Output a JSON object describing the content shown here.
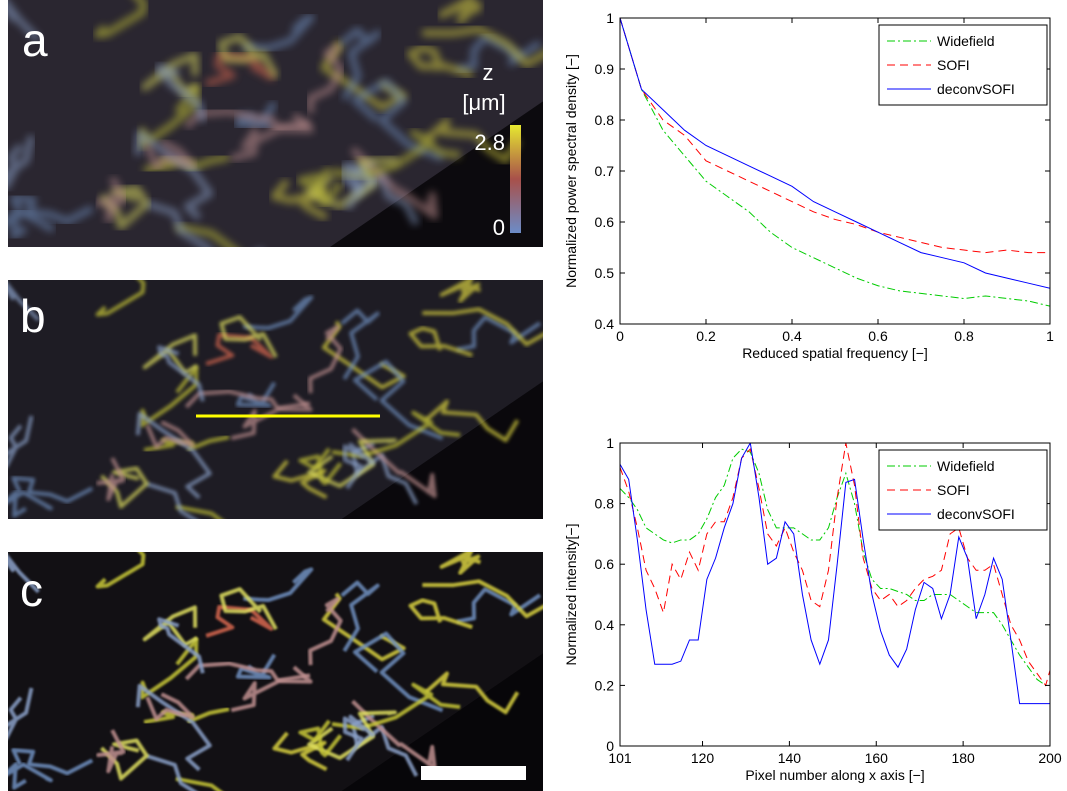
{
  "image_panels": {
    "labels": [
      "a",
      "b",
      "c"
    ]
  },
  "colorbar": {
    "title": "z",
    "unit": "[μm]",
    "ticks": [
      0,
      2.8
    ]
  },
  "chart_data": [
    {
      "type": "line",
      "xlabel": "Reduced spatial frequency [−]",
      "ylabel": "Normalized power spectral density [−]",
      "x": [
        0,
        0.05,
        0.1,
        0.15,
        0.2,
        0.25,
        0.3,
        0.35,
        0.4,
        0.45,
        0.5,
        0.55,
        0.6,
        0.65,
        0.7,
        0.75,
        0.8,
        0.85,
        0.9,
        0.95,
        1
      ],
      "xlim": [
        0,
        1
      ],
      "ylim": [
        0.4,
        1
      ],
      "xticks": [
        0,
        0.2,
        0.4,
        0.6,
        0.8,
        1
      ],
      "yticks": [
        0.4,
        0.5,
        0.6,
        0.7,
        0.8,
        0.9,
        1
      ],
      "legend": "upper right",
      "series": [
        {
          "name": "Widefield",
          "color": "#00cc00",
          "linestyle": "dashdot",
          "values": [
            1,
            0.86,
            0.78,
            0.73,
            0.68,
            0.65,
            0.62,
            0.58,
            0.55,
            0.53,
            0.51,
            0.49,
            0.475,
            0.465,
            0.46,
            0.455,
            0.45,
            0.455,
            0.45,
            0.445,
            0.435
          ]
        },
        {
          "name": "SOFI",
          "color": "#ff0000",
          "linestyle": "dashed",
          "values": [
            1,
            0.86,
            0.8,
            0.77,
            0.72,
            0.7,
            0.68,
            0.66,
            0.64,
            0.62,
            0.605,
            0.595,
            0.58,
            0.57,
            0.56,
            0.55,
            0.545,
            0.54,
            0.545,
            0.54,
            0.54
          ]
        },
        {
          "name": "deconvSOFI",
          "color": "#0000ff",
          "linestyle": "solid",
          "values": [
            1,
            0.86,
            0.82,
            0.78,
            0.75,
            0.73,
            0.71,
            0.69,
            0.67,
            0.64,
            0.62,
            0.6,
            0.58,
            0.56,
            0.54,
            0.53,
            0.52,
            0.5,
            0.49,
            0.48,
            0.47
          ]
        }
      ]
    },
    {
      "type": "line",
      "xlabel": "Pixel number along x axis [−]",
      "ylabel": "Normalized intensity[−]",
      "x": [
        101,
        103,
        105,
        107,
        109,
        111,
        113,
        115,
        117,
        119,
        121,
        123,
        125,
        127,
        129,
        131,
        133,
        135,
        137,
        139,
        141,
        143,
        145,
        147,
        149,
        151,
        153,
        155,
        157,
        159,
        161,
        163,
        165,
        167,
        169,
        171,
        173,
        175,
        177,
        179,
        181,
        183,
        185,
        187,
        189,
        191,
        193,
        195,
        197,
        199,
        200
      ],
      "xlim": [
        101,
        200
      ],
      "ylim": [
        0,
        1
      ],
      "xticks": [
        101,
        120,
        140,
        160,
        180,
        200
      ],
      "yticks": [
        0,
        0.2,
        0.4,
        0.6,
        0.8,
        1
      ],
      "legend": "upper right",
      "series": [
        {
          "name": "Widefield",
          "color": "#00cc00",
          "linestyle": "dashdot",
          "values": [
            0.85,
            0.82,
            0.78,
            0.72,
            0.7,
            0.68,
            0.67,
            0.68,
            0.68,
            0.7,
            0.75,
            0.82,
            0.86,
            0.95,
            0.98,
            0.97,
            0.9,
            0.78,
            0.72,
            0.72,
            0.72,
            0.7,
            0.68,
            0.68,
            0.72,
            0.82,
            0.9,
            0.8,
            0.64,
            0.55,
            0.52,
            0.52,
            0.51,
            0.5,
            0.48,
            0.48,
            0.5,
            0.5,
            0.5,
            0.48,
            0.46,
            0.44,
            0.44,
            0.44,
            0.4,
            0.35,
            0.3,
            0.26,
            0.22,
            0.2,
            0.2
          ]
        },
        {
          "name": "SOFI",
          "color": "#ff0000",
          "linestyle": "dashed",
          "values": [
            0.92,
            0.84,
            0.72,
            0.58,
            0.52,
            0.44,
            0.6,
            0.55,
            0.64,
            0.58,
            0.7,
            0.74,
            0.74,
            0.82,
            0.95,
            0.98,
            0.85,
            0.7,
            0.66,
            0.72,
            0.64,
            0.58,
            0.48,
            0.46,
            0.58,
            0.82,
            1,
            0.86,
            0.62,
            0.52,
            0.48,
            0.5,
            0.46,
            0.48,
            0.52,
            0.55,
            0.56,
            0.58,
            0.7,
            0.72,
            0.62,
            0.58,
            0.58,
            0.6,
            0.5,
            0.4,
            0.35,
            0.28,
            0.24,
            0.2,
            0.25
          ]
        },
        {
          "name": "deconvSOFI",
          "color": "#0000ff",
          "linestyle": "solid",
          "values": [
            0.93,
            0.88,
            0.68,
            0.45,
            0.27,
            0.27,
            0.27,
            0.28,
            0.35,
            0.35,
            0.55,
            0.62,
            0.72,
            0.8,
            0.95,
            1,
            0.82,
            0.6,
            0.62,
            0.74,
            0.7,
            0.5,
            0.35,
            0.27,
            0.35,
            0.6,
            0.87,
            0.88,
            0.68,
            0.5,
            0.38,
            0.3,
            0.26,
            0.32,
            0.45,
            0.54,
            0.52,
            0.42,
            0.5,
            0.69,
            0.62,
            0.42,
            0.5,
            0.62,
            0.55,
            0.35,
            0.14,
            0.14,
            0.14,
            0.14,
            0.14
          ]
        }
      ]
    }
  ]
}
